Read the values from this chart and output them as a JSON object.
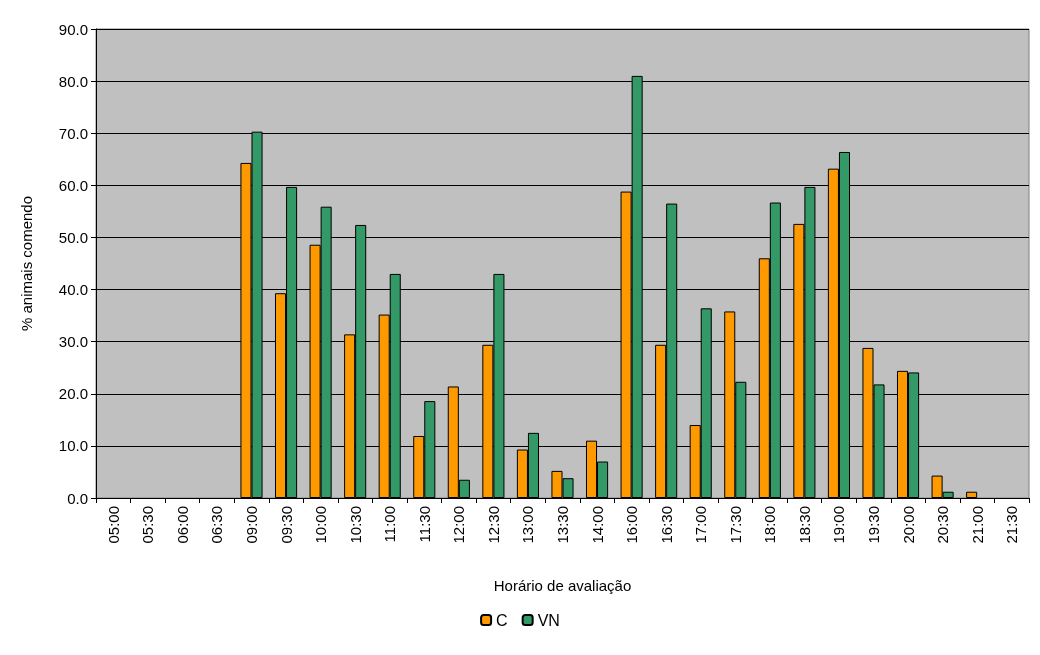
{
  "chart_data": {
    "type": "bar",
    "xlabel": "Horário de avaliação",
    "ylabel": "% animais comendo",
    "categories": [
      "05:00",
      "05:30",
      "06:00",
      "06:30",
      "09:00",
      "09:30",
      "10:00",
      "10:30",
      "11:00",
      "11:30",
      "12:00",
      "12:30",
      "13:00",
      "13:30",
      "14:00",
      "16:00",
      "16:30",
      "17:00",
      "17:30",
      "18:00",
      "18:30",
      "19:00",
      "19:30",
      "20:00",
      "20:30",
      "21:00",
      "21:30"
    ],
    "series": [
      {
        "name": "C",
        "color": "#ff9900",
        "values": [
          0,
          0,
          0,
          0,
          64.3,
          39.3,
          48.6,
          31.4,
          35.2,
          11.9,
          21.4,
          29.4,
          9.3,
          5.2,
          11.0,
          58.8,
          29.4,
          14.0,
          35.8,
          46.0,
          52.6,
          63.2,
          28.8,
          24.4,
          4.3,
          1.2,
          0
        ]
      },
      {
        "name": "VN",
        "color": "#339966",
        "values": [
          0,
          0,
          0,
          0,
          70.3,
          59.7,
          55.9,
          52.4,
          43.0,
          18.6,
          3.5,
          43.0,
          12.5,
          3.8,
          7.0,
          81.0,
          56.5,
          36.4,
          22.3,
          56.7,
          59.7,
          66.4,
          21.8,
          24.1,
          1.2,
          0,
          0
        ]
      }
    ],
    "ylim": [
      0,
      90
    ],
    "yticks": [
      {
        "value": 0,
        "label": "0.0"
      },
      {
        "value": 10,
        "label": "10.0"
      },
      {
        "value": 20,
        "label": "20.0"
      },
      {
        "value": 30,
        "label": "30.0"
      },
      {
        "value": 40,
        "label": "40.0"
      },
      {
        "value": 50,
        "label": "50.0"
      },
      {
        "value": 60,
        "label": "60.0"
      },
      {
        "value": 70,
        "label": "70.0"
      },
      {
        "value": 80,
        "label": "80.0"
      },
      {
        "value": 90,
        "label": "90.0"
      }
    ],
    "grid": "y",
    "legend": "bottom"
  }
}
